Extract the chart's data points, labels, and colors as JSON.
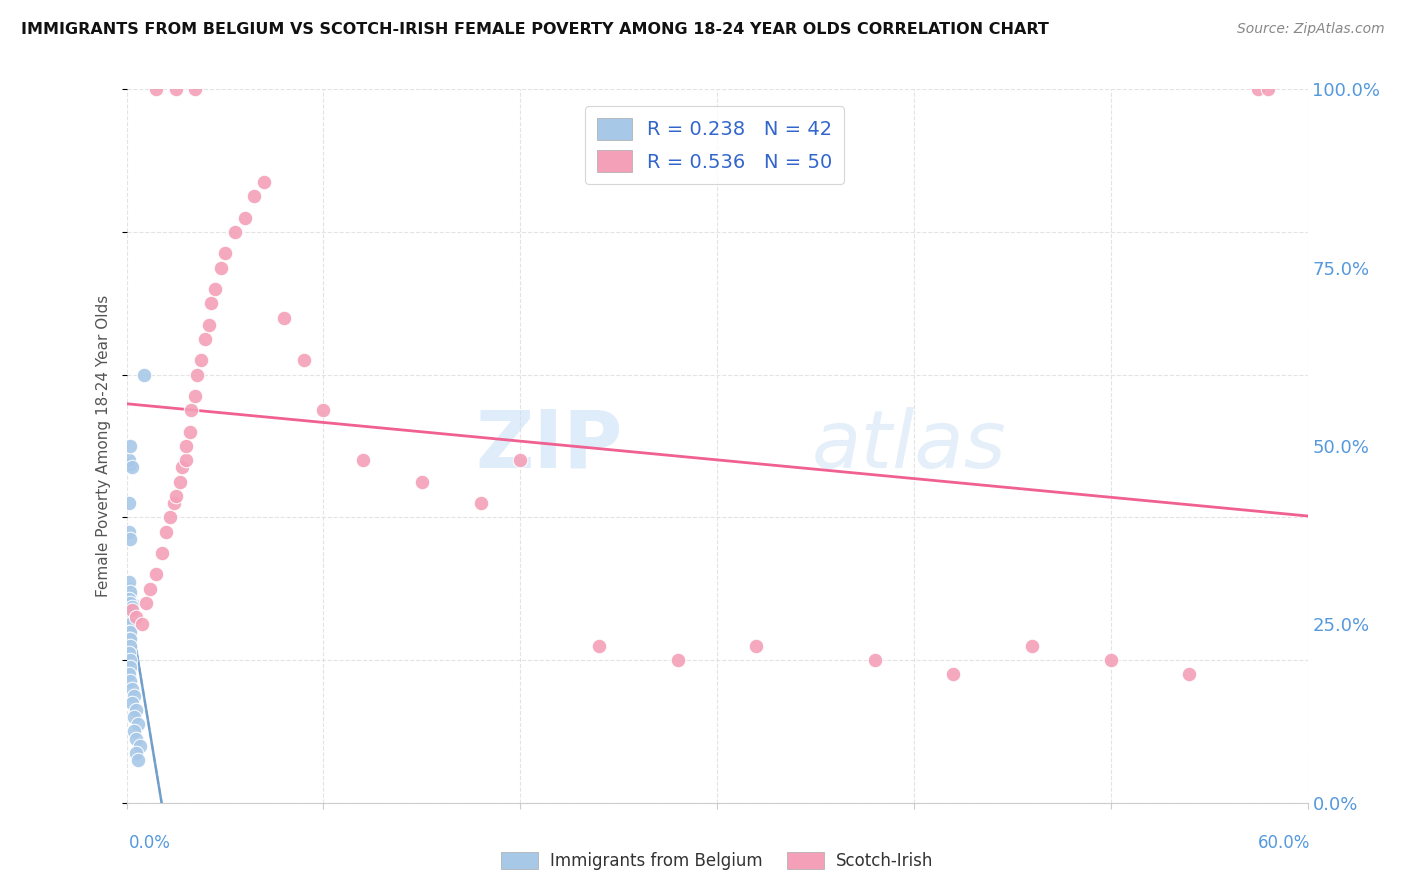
{
  "title": "IMMIGRANTS FROM BELGIUM VS SCOTCH-IRISH FEMALE POVERTY AMONG 18-24 YEAR OLDS CORRELATION CHART",
  "source": "Source: ZipAtlas.com",
  "ylabel": "Female Poverty Among 18-24 Year Olds",
  "legend_label1": "Immigrants from Belgium",
  "legend_label2": "Scotch-Irish",
  "R1": 0.238,
  "N1": 42,
  "R2": 0.536,
  "N2": 50,
  "color_blue": "#a8c8e8",
  "color_pink": "#f4a0b8",
  "color_blue_line": "#6699cc",
  "color_pink_line": "#f06090",
  "color_gray_dash": "#bbbbbb",
  "background": "#ffffff",
  "xlim": [
    0.0,
    0.6
  ],
  "ylim": [
    0.0,
    1.0
  ],
  "blue_x": [
    0.001,
    0.001,
    0.002,
    0.001,
    0.002,
    0.001,
    0.002,
    0.001,
    0.002,
    0.003,
    0.001,
    0.002,
    0.001,
    0.002,
    0.001,
    0.002,
    0.003,
    0.002,
    0.001,
    0.002,
    0.001,
    0.002,
    0.001,
    0.002,
    0.001,
    0.002,
    0.003,
    0.002,
    0.001,
    0.002,
    0.003,
    0.004,
    0.003,
    0.005,
    0.004,
    0.006,
    0.004,
    0.005,
    0.007,
    0.005,
    0.006,
    0.009
  ],
  "blue_y": [
    0.27,
    0.26,
    0.26,
    0.25,
    0.25,
    0.24,
    0.24,
    0.23,
    0.23,
    0.28,
    0.3,
    0.29,
    0.31,
    0.295,
    0.285,
    0.28,
    0.275,
    0.22,
    0.21,
    0.2,
    0.38,
    0.37,
    0.42,
    0.475,
    0.48,
    0.5,
    0.47,
    0.19,
    0.18,
    0.17,
    0.16,
    0.15,
    0.14,
    0.13,
    0.12,
    0.11,
    0.1,
    0.09,
    0.08,
    0.07,
    0.06,
    0.6
  ],
  "pink_x": [
    0.003,
    0.005,
    0.008,
    0.01,
    0.012,
    0.015,
    0.018,
    0.02,
    0.022,
    0.024,
    0.025,
    0.027,
    0.028,
    0.03,
    0.03,
    0.032,
    0.033,
    0.035,
    0.036,
    0.038,
    0.04,
    0.042,
    0.043,
    0.045,
    0.048,
    0.05,
    0.055,
    0.06,
    0.065,
    0.07,
    0.08,
    0.09,
    0.1,
    0.12,
    0.15,
    0.18,
    0.2,
    0.24,
    0.28,
    0.32,
    0.38,
    0.42,
    0.46,
    0.5,
    0.54,
    0.575,
    0.58,
    0.015,
    0.025,
    0.035
  ],
  "pink_y": [
    0.27,
    0.26,
    0.25,
    0.28,
    0.3,
    0.32,
    0.35,
    0.38,
    0.4,
    0.42,
    0.43,
    0.45,
    0.47,
    0.48,
    0.5,
    0.52,
    0.55,
    0.57,
    0.6,
    0.62,
    0.65,
    0.67,
    0.7,
    0.72,
    0.75,
    0.77,
    0.8,
    0.82,
    0.85,
    0.87,
    0.68,
    0.62,
    0.55,
    0.48,
    0.45,
    0.42,
    0.48,
    0.22,
    0.2,
    0.22,
    0.2,
    0.18,
    0.22,
    0.2,
    0.18,
    1.0,
    1.0,
    1.0,
    1.0,
    1.0
  ]
}
